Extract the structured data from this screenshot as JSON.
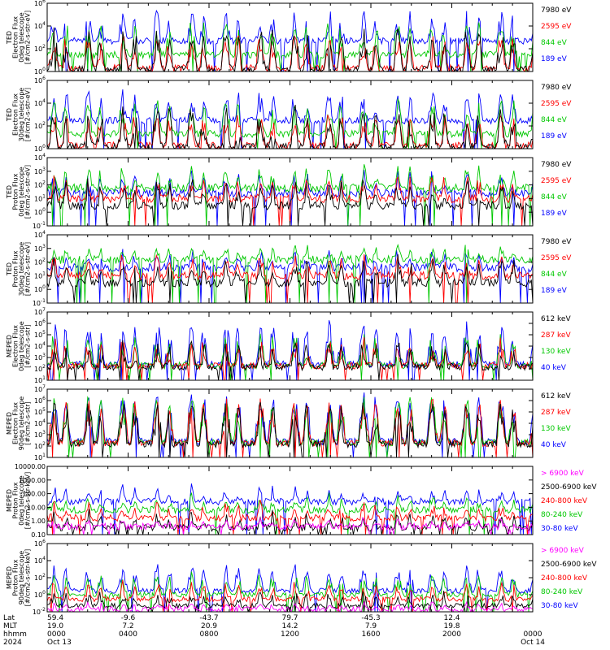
{
  "chart_data": [
    {
      "type": "line",
      "ylabel_lines": [
        "TED",
        "Electron Flux",
        "0deg telescope",
        "[#/cm2-s-str-eV]"
      ],
      "yscale": "log",
      "ylim": [
        1,
        1000000
      ],
      "yticks": [
        "10^0",
        "10^2",
        "10^4",
        "10^6"
      ],
      "series": [
        {
          "name": "7980 eV",
          "color": "#000000",
          "baseline": 1.5,
          "peaks": [
            40,
            7000
          ]
        },
        {
          "name": "2595 eV",
          "color": "#ff0000",
          "baseline": 2.0,
          "peaks": [
            50,
            3000
          ]
        },
        {
          "name": "844 eV",
          "color": "#00c800",
          "baseline": 30,
          "peaks": [
            200,
            40000
          ]
        },
        {
          "name": "189 eV",
          "color": "#0000ff",
          "baseline": 500,
          "peaks": [
            2000,
            300000
          ]
        }
      ]
    },
    {
      "type": "line",
      "ylabel_lines": [
        "TED",
        "Electron Flux",
        "30deg telescope",
        "[#/cm2-s-str-eV]"
      ],
      "yscale": "log",
      "ylim": [
        1,
        1000000
      ],
      "yticks": [
        "10^0",
        "10^2",
        "10^4",
        "10^6"
      ],
      "series": [
        {
          "name": "7980 eV",
          "color": "#000000",
          "baseline": 1.5,
          "peaks": [
            40,
            7000
          ]
        },
        {
          "name": "2595 eV",
          "color": "#ff0000",
          "baseline": 2.0,
          "peaks": [
            50,
            3000
          ]
        },
        {
          "name": "844 eV",
          "color": "#00c800",
          "baseline": 20,
          "peaks": [
            200,
            30000
          ]
        },
        {
          "name": "189 eV",
          "color": "#0000ff",
          "baseline": 300,
          "peaks": [
            2000,
            200000
          ]
        }
      ]
    },
    {
      "type": "line",
      "ylabel_lines": [
        "TED",
        "Proton Flux",
        "0deg telescope",
        "[#/cm2-s-str-eV]"
      ],
      "yscale": "log",
      "ylim": [
        0.1,
        10000
      ],
      "yticks": [
        "10^-1",
        "10^0",
        "10^1",
        "10^2",
        "10^3",
        "10^4"
      ],
      "series": [
        {
          "name": "7980 eV",
          "color": "#000000",
          "baseline": 3,
          "peaks": [
            20,
            400
          ]
        },
        {
          "name": "2595 eV",
          "color": "#ff0000",
          "baseline": 10,
          "peaks": [
            60,
            800
          ]
        },
        {
          "name": "844 eV",
          "color": "#00c800",
          "baseline": 60,
          "peaks": [
            300,
            4000
          ]
        },
        {
          "name": "189 eV",
          "color": "#0000ff",
          "baseline": 25,
          "peaks": [
            100,
            1500
          ]
        }
      ]
    },
    {
      "type": "line",
      "ylabel_lines": [
        "TED",
        "Proton Flux",
        "30deg telescope",
        "[#/cm2-s-str-eV]"
      ],
      "yscale": "log",
      "ylim": [
        0.1,
        10000
      ],
      "yticks": [
        "10^-1",
        "10^0",
        "10^1",
        "10^2",
        "10^3",
        "10^4"
      ],
      "series": [
        {
          "name": "7980 eV",
          "color": "#000000",
          "baseline": 3,
          "peaks": [
            20,
            300
          ]
        },
        {
          "name": "2595 eV",
          "color": "#ff0000",
          "baseline": 10,
          "peaks": [
            50,
            600
          ]
        },
        {
          "name": "844 eV",
          "color": "#00c800",
          "baseline": 150,
          "peaks": [
            500,
            3000
          ]
        },
        {
          "name": "189 eV",
          "color": "#0000ff",
          "baseline": 40,
          "peaks": [
            150,
            1200
          ]
        }
      ]
    },
    {
      "type": "line",
      "ylabel_lines": [
        "MEPED",
        "Electron Flux",
        "0deg telescope",
        "[#/cm2-s-str]"
      ],
      "yscale": "log",
      "ylim": [
        10,
        10000000
      ],
      "yticks": [
        "10^1",
        "10^2",
        "10^3",
        "10^4",
        "10^5",
        "10^6",
        "10^7"
      ],
      "series": [
        {
          "name": "612 keV",
          "color": "#000000",
          "baseline": 150,
          "peaks": [
            500,
            50000
          ]
        },
        {
          "name": "287 keV",
          "color": "#ff0000",
          "baseline": 180,
          "peaks": [
            800,
            80000
          ]
        },
        {
          "name": "130 keV",
          "color": "#00c800",
          "baseline": 200,
          "peaks": [
            1000,
            200000
          ]
        },
        {
          "name": "40 keV",
          "color": "#0000ff",
          "baseline": 250,
          "peaks": [
            3000,
            2000000
          ]
        }
      ]
    },
    {
      "type": "line",
      "ylabel_lines": [
        "MEPED",
        "Electron Flux",
        "90deg telescope",
        "[#/cm2-s-str]"
      ],
      "yscale": "log",
      "ylim": [
        10,
        10000000
      ],
      "yticks": [
        "10^1",
        "10^2",
        "10^3",
        "10^4",
        "10^5",
        "10^6",
        "10^7"
      ],
      "series": [
        {
          "name": "612 keV",
          "color": "#000000",
          "baseline": 150,
          "peaks": [
            10000,
            1000000
          ]
        },
        {
          "name": "287 keV",
          "color": "#ff0000",
          "baseline": 180,
          "peaks": [
            20000,
            2000000
          ]
        },
        {
          "name": "130 keV",
          "color": "#00c800",
          "baseline": 200,
          "peaks": [
            30000,
            3000000
          ]
        },
        {
          "name": "40 keV",
          "color": "#0000ff",
          "baseline": 250,
          "peaks": [
            50000,
            5000000
          ]
        }
      ]
    },
    {
      "type": "line",
      "ylabel_lines": [
        "MEPED",
        "Proton Flux",
        "0deg telescope",
        "[#/cm2-s-str-keV]"
      ],
      "yscale": "log",
      "ylim": [
        0.01,
        10000
      ],
      "yticks": [
        "0.10",
        "1.00",
        "10.00",
        "100.00",
        "1000.00",
        "10000.00"
      ],
      "series": [
        {
          "name": "> 6900 keV",
          "color": "#ff00ff",
          "baseline": 0.05,
          "peaks": [
            0.1,
            0.3
          ]
        },
        {
          "name": "2500-6900 keV",
          "color": "#000000",
          "baseline": 0.04,
          "peaks": [
            0.1,
            2
          ]
        },
        {
          "name": "240-800 keV",
          "color": "#ff0000",
          "baseline": 0.3,
          "peaks": [
            1,
            10
          ]
        },
        {
          "name": "80-240 keV",
          "color": "#00c800",
          "baseline": 1.5,
          "peaks": [
            5,
            50
          ]
        },
        {
          "name": "30-80 keV",
          "color": "#0000ff",
          "baseline": 8,
          "peaks": [
            30,
            300
          ]
        }
      ]
    },
    {
      "type": "line",
      "ylabel_lines": [
        "MEPED",
        "Proton Flux",
        "90deg telescope",
        "[#/cm2-s-str-keV]"
      ],
      "yscale": "log",
      "ylim": [
        0.01,
        1000000
      ],
      "yticks": [
        "10^-2",
        "10^0",
        "10^2",
        "10^4",
        "10^6"
      ],
      "series": [
        {
          "name": "> 6900 keV",
          "color": "#ff00ff",
          "baseline": 0.02,
          "peaks": [
            0.05,
            0.2
          ]
        },
        {
          "name": "2500-6900 keV",
          "color": "#000000",
          "baseline": 0.05,
          "peaks": [
            0.2,
            5
          ]
        },
        {
          "name": "240-800 keV",
          "color": "#ff0000",
          "baseline": 0.3,
          "peaks": [
            2,
            50
          ]
        },
        {
          "name": "80-240 keV",
          "color": "#00c800",
          "baseline": 1,
          "peaks": [
            10,
            500
          ]
        },
        {
          "name": "30-80 keV",
          "color": "#0000ff",
          "baseline": 3,
          "peaks": [
            50,
            5000
          ]
        }
      ]
    }
  ],
  "x_axis": {
    "xlim_hours": [
      0,
      24
    ],
    "row_labels": [
      "Lat",
      "MLT",
      "hhmm",
      "2024"
    ],
    "ticks": [
      {
        "hour": 0,
        "lat": "59.4",
        "mlt": "19.0",
        "hhmm": "0000",
        "date": "Oct 13"
      },
      {
        "hour": 4,
        "lat": "-9.6",
        "mlt": "7.2",
        "hhmm": "0400",
        "date": ""
      },
      {
        "hour": 8,
        "lat": "-43.7",
        "mlt": "20.9",
        "hhmm": "0800",
        "date": ""
      },
      {
        "hour": 12,
        "lat": "79.7",
        "mlt": "14.2",
        "hhmm": "1200",
        "date": ""
      },
      {
        "hour": 16,
        "lat": "-45.3",
        "mlt": "7.9",
        "hhmm": "1600",
        "date": ""
      },
      {
        "hour": 20,
        "lat": "12.4",
        "mlt": "19.8",
        "hhmm": "2000",
        "date": ""
      },
      {
        "hour": 24,
        "lat": "",
        "mlt": "",
        "hhmm": "0000",
        "date": "Oct 14"
      }
    ]
  }
}
